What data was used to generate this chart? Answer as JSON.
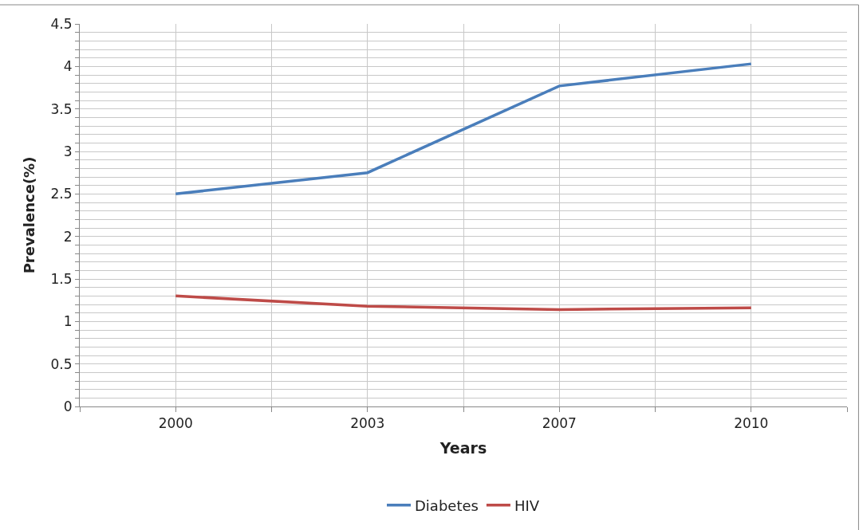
{
  "chart_data": {
    "type": "line",
    "xlabel": "Years",
    "ylabel": "Prevalence(%)",
    "categories": [
      "2000",
      "2003",
      "2007",
      "2010"
    ],
    "series": [
      {
        "name": "Diabetes",
        "color": "#4a7ebb",
        "values": [
          2.5,
          2.75,
          3.77,
          4.03
        ]
      },
      {
        "name": "HIV",
        "color": "#be4b48",
        "values": [
          1.3,
          1.18,
          1.14,
          1.16
        ]
      }
    ],
    "ylim": [
      0,
      4.5
    ],
    "yticks": [
      0,
      {
        "value": 0.1,
        "label": null
      },
      {
        "value": 0.2,
        "label": null
      },
      {
        "value": 0.3,
        "label": null
      },
      {
        "value": 0.4,
        "label": null
      },
      0.5,
      {
        "value": 0.6,
        "label": null
      },
      {
        "value": 0.7,
        "label": null
      },
      {
        "value": 0.8,
        "label": null
      },
      {
        "value": 0.9,
        "label": null
      },
      1,
      {
        "value": 1.1,
        "label": null
      },
      {
        "value": 1.2,
        "label": null
      },
      {
        "value": 1.3,
        "label": null
      },
      {
        "value": 1.4,
        "label": null
      },
      1.5,
      {
        "value": 1.6,
        "label": null
      },
      {
        "value": 1.7,
        "label": null
      },
      {
        "value": 1.8,
        "label": null
      },
      {
        "value": 1.9,
        "label": null
      },
      2,
      {
        "value": 2.1,
        "label": null
      },
      {
        "value": 2.2,
        "label": null
      },
      {
        "value": 2.3,
        "label": null
      },
      {
        "value": 2.4,
        "label": null
      },
      2.5,
      {
        "value": 2.6,
        "label": null
      },
      {
        "value": 2.7,
        "label": null
      },
      {
        "value": 2.8,
        "label": null
      },
      {
        "value": 2.9,
        "label": null
      },
      3,
      {
        "value": 3.1,
        "label": null
      },
      {
        "value": 3.2,
        "label": null
      },
      {
        "value": 3.3,
        "label": null
      },
      {
        "value": 3.4,
        "label": null
      },
      3.5,
      {
        "value": 3.6,
        "label": null
      },
      {
        "value": 3.7,
        "label": null
      },
      {
        "value": 3.8,
        "label": null
      },
      {
        "value": 3.9,
        "label": null
      },
      4,
      {
        "value": 4.1,
        "label": null
      },
      {
        "value": 4.2,
        "label": null
      },
      {
        "value": 4.3,
        "label": null
      },
      {
        "value": 4.4,
        "label": null
      },
      4.5
    ],
    "grid": true,
    "legend": "bottom",
    "line_style": "solid"
  }
}
